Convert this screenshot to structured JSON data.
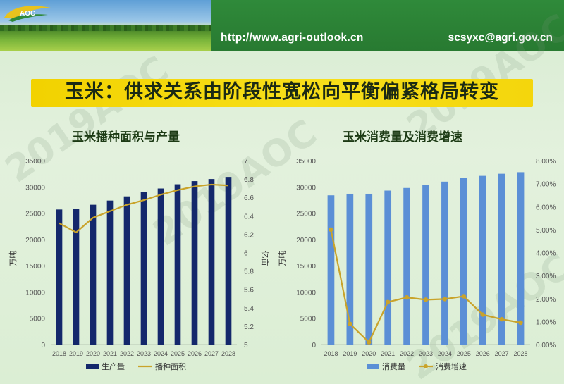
{
  "header": {
    "url": "http://www.agri-outlook.cn",
    "email": "scsyxc@agri.gov.cn",
    "logo_text": "AOC"
  },
  "title": "玉米：供求关系由阶段性宽松向平衡偏紧格局转变",
  "watermark": "2019AOC",
  "colors": {
    "title_bar": "#f5d80c",
    "dark_bar": "#14286b",
    "light_bar": "#5b8fd6",
    "line": "#c9a32a"
  },
  "chart_data": [
    {
      "type": "bar",
      "title": "玉米播种面积与产量",
      "categories": [
        "2018",
        "2019",
        "2020",
        "2021",
        "2022",
        "2023",
        "2024",
        "2025",
        "2026",
        "2027",
        "2028"
      ],
      "ylabel": "万吨",
      "y2label": "亿亩",
      "ylim": [
        0,
        35000
      ],
      "yticks": [
        "0",
        "5000",
        "10000",
        "15000",
        "20000",
        "25000",
        "30000",
        "35000"
      ],
      "y2lim": [
        5,
        7
      ],
      "y2ticks": [
        "5",
        "5.2",
        "5.4",
        "5.6",
        "5.8",
        "6",
        "6.2",
        "6.4",
        "6.6",
        "6.8",
        "7"
      ],
      "series": [
        {
          "name": "生产量",
          "type": "bar",
          "axis": "left",
          "values": [
            25700,
            25800,
            26600,
            27400,
            28200,
            29000,
            29700,
            30500,
            31100,
            31500,
            31900
          ]
        },
        {
          "name": "播种面积",
          "type": "line",
          "axis": "right",
          "values": [
            6.32,
            6.22,
            6.38,
            6.45,
            6.52,
            6.57,
            6.63,
            6.68,
            6.72,
            6.74,
            6.73
          ]
        }
      ]
    },
    {
      "type": "bar",
      "title": "玉米消费量及消费增速",
      "categories": [
        "2018",
        "2019",
        "2020",
        "2021",
        "2022",
        "2023",
        "2024",
        "2025",
        "2026",
        "2027",
        "2028"
      ],
      "ylabel": "万吨",
      "ylim": [
        0,
        35000
      ],
      "yticks": [
        "0",
        "5000",
        "10000",
        "15000",
        "20000",
        "25000",
        "30000",
        "35000"
      ],
      "y2lim": [
        0,
        8
      ],
      "y2ticks": [
        "0.00%",
        "1.00%",
        "2.00%",
        "3.00%",
        "4.00%",
        "5.00%",
        "6.00%",
        "7.00%",
        "8.00%"
      ],
      "series": [
        {
          "name": "消费量",
          "type": "bar",
          "axis": "left",
          "values": [
            28400,
            28700,
            28700,
            29300,
            29800,
            30400,
            31000,
            31700,
            32100,
            32500,
            32800
          ]
        },
        {
          "name": "消费增速",
          "type": "line",
          "axis": "right",
          "values": [
            5.0,
            0.9,
            0.1,
            1.85,
            2.05,
            1.95,
            1.98,
            2.1,
            1.3,
            1.1,
            0.95
          ]
        }
      ]
    }
  ]
}
